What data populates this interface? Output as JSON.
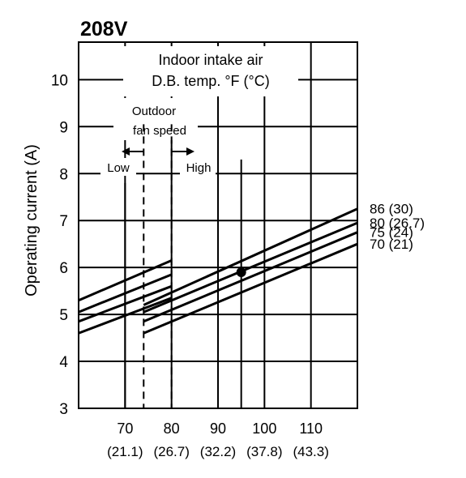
{
  "chart_data": {
    "type": "line",
    "title": "208V",
    "ylabel": "Operating current (A)",
    "xlabel": "",
    "xlim": [
      60,
      120
    ],
    "ylim": [
      3,
      11
    ],
    "x_ticks": [
      70,
      80,
      90,
      100,
      110
    ],
    "x_tick_celsius": [
      "(21.1)",
      "(26.7)",
      "(32.2)",
      "(37.8)",
      "(43.3)"
    ],
    "y_ticks": [
      3,
      4,
      5,
      6,
      7,
      8,
      9,
      10
    ],
    "grid": true,
    "indoor_label_line1": "Indoor intake air",
    "indoor_label_line2": "D.B. temp. °F (°C)",
    "fan_label_line1": "Outdoor",
    "fan_label_line2": "fan speed",
    "fan_low_label": "Low",
    "fan_high_label": "High",
    "fan_boundary_low_x": 74,
    "fan_boundary_high_x": 80,
    "series": [
      {
        "name": "86 (30)",
        "low": {
          "x": [
            60,
            80
          ],
          "y": [
            5.3,
            6.15
          ]
        },
        "high": {
          "x": [
            74,
            120
          ],
          "y": [
            5.2,
            7.25
          ]
        }
      },
      {
        "name": "80 (26.7)",
        "low": {
          "x": [
            60,
            80
          ],
          "y": [
            5.05,
            5.85
          ]
        },
        "high": {
          "x": [
            74,
            120
          ],
          "y": [
            5.05,
            6.95
          ]
        }
      },
      {
        "name": "75 (24)",
        "low": {
          "x": [
            60,
            80
          ],
          "y": [
            4.85,
            5.6
          ]
        },
        "high": {
          "x": [
            74,
            120
          ],
          "y": [
            4.85,
            6.75
          ]
        }
      },
      {
        "name": "70 (21)",
        "low": {
          "x": [
            60,
            80
          ],
          "y": [
            4.6,
            5.35
          ]
        },
        "high": {
          "x": [
            74,
            120
          ],
          "y": [
            4.6,
            6.5
          ]
        }
      }
    ],
    "marker": {
      "x": 95,
      "y": 5.9
    },
    "reference_lines_x": [
      70,
      95
    ]
  }
}
